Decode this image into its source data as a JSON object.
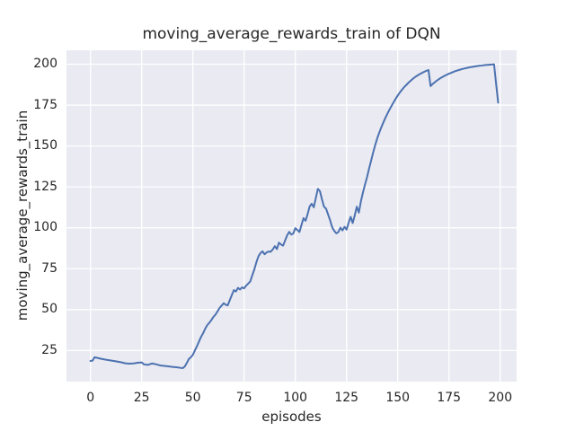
{
  "chart_data": {
    "type": "line",
    "title": "moving_average_rewards_train of DQN",
    "xlabel": "episodes",
    "ylabel": "moving_average_rewards_train",
    "xlim": [
      -11.7,
      208
    ],
    "ylim": [
      6,
      208.5
    ],
    "xticks": [
      0,
      25,
      50,
      75,
      100,
      125,
      150,
      175,
      200
    ],
    "yticks": [
      25,
      50,
      75,
      100,
      125,
      150,
      175,
      200
    ],
    "grid": true,
    "legend": false,
    "style": "seaborn-darkgrid",
    "colors": {
      "line": "#4c72b0",
      "plot_background": "#eaeaf2",
      "grid": "#ffffff",
      "figure_background": "#ffffff",
      "text": "#262626"
    },
    "series": [
      {
        "name": "moving_average_rewards_train",
        "points": [
          [
            0,
            18.6
          ],
          [
            1,
            18.8
          ],
          [
            2,
            20.9
          ],
          [
            3,
            20.6
          ],
          [
            5,
            20.0
          ],
          [
            7,
            19.5
          ],
          [
            9,
            19.1
          ],
          [
            11,
            18.7
          ],
          [
            13,
            18.3
          ],
          [
            15,
            17.8
          ],
          [
            17,
            17.2
          ],
          [
            19,
            17.0
          ],
          [
            21,
            17.1
          ],
          [
            23,
            17.5
          ],
          [
            25,
            17.7
          ],
          [
            26,
            16.6
          ],
          [
            28,
            16.2
          ],
          [
            30,
            17.1
          ],
          [
            32,
            16.6
          ],
          [
            34,
            15.9
          ],
          [
            36,
            15.6
          ],
          [
            38,
            15.3
          ],
          [
            40,
            15.0
          ],
          [
            42,
            14.8
          ],
          [
            44,
            14.4
          ],
          [
            45,
            14.2
          ],
          [
            46,
            15.2
          ],
          [
            47,
            17.3
          ],
          [
            48,
            19.8
          ],
          [
            49,
            20.9
          ],
          [
            50,
            22.4
          ],
          [
            51,
            25.1
          ],
          [
            52,
            27.7
          ],
          [
            53,
            30.6
          ],
          [
            54,
            33.4
          ],
          [
            55,
            35.6
          ],
          [
            56,
            38.3
          ],
          [
            57,
            40.5
          ],
          [
            58,
            41.9
          ],
          [
            59,
            43.6
          ],
          [
            60,
            45.5
          ],
          [
            61,
            46.9
          ],
          [
            62,
            48.9
          ],
          [
            63,
            51.0
          ],
          [
            64,
            52.4
          ],
          [
            65,
            53.9
          ],
          [
            66,
            53.0
          ],
          [
            67,
            52.6
          ],
          [
            68,
            55.8
          ],
          [
            69,
            58.9
          ],
          [
            70,
            61.9
          ],
          [
            71,
            61.1
          ],
          [
            72,
            63.3
          ],
          [
            73,
            62.3
          ],
          [
            74,
            63.6
          ],
          [
            75,
            63.0
          ],
          [
            76,
            64.7
          ],
          [
            77,
            65.9
          ],
          [
            78,
            67.2
          ],
          [
            79,
            71.0
          ],
          [
            80,
            74.6
          ],
          [
            81,
            79.0
          ],
          [
            82,
            82.6
          ],
          [
            83,
            84.6
          ],
          [
            84,
            85.6
          ],
          [
            85,
            83.8
          ],
          [
            86,
            85.0
          ],
          [
            87,
            85.5
          ],
          [
            88,
            85.4
          ],
          [
            89,
            86.8
          ],
          [
            90,
            88.8
          ],
          [
            91,
            87.0
          ],
          [
            92,
            90.9
          ],
          [
            93,
            89.8
          ],
          [
            94,
            89.1
          ],
          [
            95,
            92.2
          ],
          [
            96,
            95.4
          ],
          [
            97,
            97.5
          ],
          [
            98,
            95.9
          ],
          [
            99,
            96.5
          ],
          [
            100,
            99.8
          ],
          [
            101,
            98.7
          ],
          [
            102,
            97.4
          ],
          [
            103,
            101.7
          ],
          [
            104,
            105.9
          ],
          [
            105,
            104.3
          ],
          [
            106,
            108.4
          ],
          [
            107,
            113.1
          ],
          [
            108,
            114.7
          ],
          [
            109,
            112.5
          ],
          [
            110,
            118.2
          ],
          [
            111,
            123.8
          ],
          [
            112,
            122.4
          ],
          [
            113,
            117.4
          ],
          [
            114,
            112.9
          ],
          [
            115,
            111.7
          ],
          [
            116,
            108.1
          ],
          [
            117,
            104.5
          ],
          [
            118,
            100.3
          ],
          [
            119,
            98.1
          ],
          [
            120,
            96.6
          ],
          [
            121,
            97.4
          ],
          [
            122,
            100.1
          ],
          [
            123,
            98.4
          ],
          [
            124,
            100.6
          ],
          [
            125,
            98.9
          ],
          [
            126,
            103.1
          ],
          [
            127,
            106.7
          ],
          [
            128,
            102.9
          ],
          [
            129,
            107.6
          ],
          [
            130,
            112.9
          ],
          [
            131,
            109.3
          ],
          [
            132,
            116.1
          ],
          [
            133,
            121.6
          ],
          [
            134,
            126.4
          ],
          [
            135,
            130.9
          ],
          [
            136,
            136.2
          ],
          [
            137,
            141.1
          ],
          [
            138,
            146.1
          ],
          [
            139,
            150.6
          ],
          [
            140,
            154.8
          ],
          [
            141,
            158.3
          ],
          [
            142,
            161.5
          ],
          [
            143,
            164.5
          ],
          [
            144,
            167.3
          ],
          [
            145,
            169.9
          ],
          [
            146,
            172.3
          ],
          [
            147,
            174.6
          ],
          [
            148,
            176.8
          ],
          [
            149,
            178.9
          ],
          [
            150,
            180.9
          ],
          [
            151,
            182.7
          ],
          [
            152,
            184.3
          ],
          [
            153,
            185.8
          ],
          [
            154,
            187.1
          ],
          [
            155,
            188.4
          ],
          [
            156,
            189.6
          ],
          [
            157,
            190.7
          ],
          [
            158,
            191.7
          ],
          [
            159,
            192.6
          ],
          [
            160,
            193.4
          ],
          [
            161,
            194.1
          ],
          [
            162,
            194.8
          ],
          [
            163,
            195.4
          ],
          [
            164,
            196.0
          ],
          [
            165,
            196.4
          ],
          [
            166,
            186.6
          ],
          [
            167,
            187.9
          ],
          [
            168,
            188.9
          ],
          [
            169,
            189.9
          ],
          [
            170,
            190.8
          ],
          [
            171,
            191.6
          ],
          [
            172,
            192.3
          ],
          [
            173,
            193.0
          ],
          [
            174,
            193.6
          ],
          [
            175,
            194.2
          ],
          [
            176,
            194.7
          ],
          [
            177,
            195.2
          ],
          [
            178,
            195.7
          ],
          [
            179,
            196.1
          ],
          [
            180,
            196.5
          ],
          [
            181,
            196.9
          ],
          [
            182,
            197.2
          ],
          [
            183,
            197.5
          ],
          [
            184,
            197.8
          ],
          [
            185,
            198.1
          ],
          [
            186,
            198.3
          ],
          [
            187,
            198.5
          ],
          [
            188,
            198.7
          ],
          [
            189,
            198.9
          ],
          [
            190,
            199.1
          ],
          [
            191,
            199.2
          ],
          [
            192,
            199.4
          ],
          [
            193,
            199.5
          ],
          [
            194,
            199.6
          ],
          [
            195,
            199.7
          ],
          [
            196,
            199.8
          ],
          [
            197,
            199.9
          ],
          [
            198,
            188.0
          ],
          [
            199,
            176.5
          ]
        ]
      }
    ]
  }
}
